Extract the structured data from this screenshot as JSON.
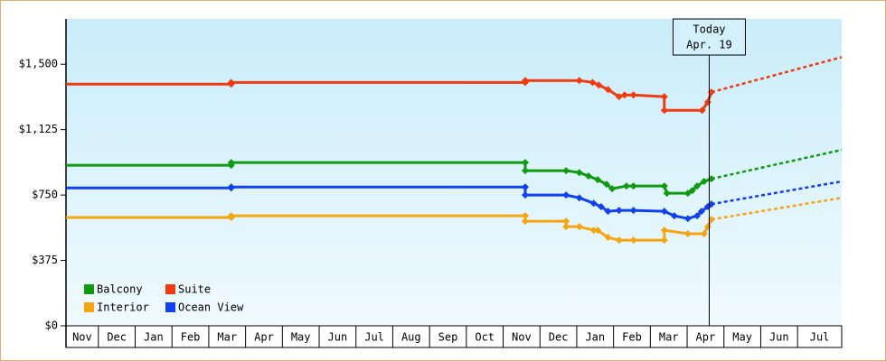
{
  "chart_data": {
    "type": "line",
    "xlim": [
      0.12,
      21.2
    ],
    "ylim": [
      0,
      1760
    ],
    "xticks": [
      {
        "value": 0,
        "label": "Nov"
      },
      {
        "value": 1,
        "label": "Dec"
      },
      {
        "value": 2,
        "label": "Jan"
      },
      {
        "value": 3,
        "label": "Feb"
      },
      {
        "value": 4,
        "label": "Mar"
      },
      {
        "value": 5,
        "label": "Apr"
      },
      {
        "value": 6,
        "label": "May"
      },
      {
        "value": 7,
        "label": "Jun"
      },
      {
        "value": 8,
        "label": "Jul"
      },
      {
        "value": 9,
        "label": "Aug"
      },
      {
        "value": 10,
        "label": "Sep"
      },
      {
        "value": 11,
        "label": "Oct"
      },
      {
        "value": 12,
        "label": "Nov"
      },
      {
        "value": 13,
        "label": "Dec"
      },
      {
        "value": 14,
        "label": "Jan"
      },
      {
        "value": 15,
        "label": "Feb"
      },
      {
        "value": 16,
        "label": "Mar"
      },
      {
        "value": 17,
        "label": "Apr"
      },
      {
        "value": 18,
        "label": "May"
      },
      {
        "value": 19,
        "label": "Jun"
      },
      {
        "value": 20,
        "label": "Jul"
      }
    ],
    "yticks": [
      {
        "value": 0,
        "label": "$0"
      },
      {
        "value": 375,
        "label": "$375"
      },
      {
        "value": 750,
        "label": "$750"
      },
      {
        "value": 1125,
        "label": "$1,125"
      },
      {
        "value": 1500,
        "label": "$1,500"
      }
    ],
    "legend": "lower left",
    "annotation": {
      "x": 17.6,
      "lines": [
        "Today",
        "Apr. 19"
      ]
    },
    "series": [
      {
        "name": "Balcony",
        "color": "#109a10",
        "x": [
          0.12,
          4.61,
          4.61,
          12.6,
          12.6,
          13.71,
          14.07,
          14.32,
          14.57,
          14.81,
          14.96,
          15.35,
          15.54,
          16.38,
          16.45,
          17.02,
          17.14,
          17.27,
          17.46,
          17.66
        ],
        "values": [
          921,
          921,
          936,
          936,
          890,
          890,
          879,
          859,
          838,
          812,
          786,
          802,
          802,
          802,
          760,
          760,
          776,
          802,
          828,
          843
        ],
        "forecast": {
          "x": [
            17.66,
            21.2
          ],
          "values": [
            843,
            1009
          ]
        }
      },
      {
        "name": "Suite",
        "color": "#f03a10",
        "x": [
          0.12,
          4.61,
          4.61,
          12.6,
          12.6,
          14.07,
          14.43,
          14.6,
          14.85,
          15.15,
          15.3,
          15.54,
          16.38,
          16.38,
          17.41,
          17.56,
          17.66
        ],
        "values": [
          1386,
          1386,
          1396,
          1396,
          1407,
          1407,
          1396,
          1381,
          1355,
          1314,
          1324,
          1324,
          1314,
          1236,
          1236,
          1283,
          1340
        ],
        "forecast": {
          "x": [
            17.66,
            21.2
          ],
          "values": [
            1340,
            1541
          ]
        }
      },
      {
        "name": "Interior",
        "color": "#f5a510",
        "x": [
          0.12,
          4.61,
          4.61,
          12.6,
          12.6,
          13.71,
          13.71,
          14.07,
          14.46,
          14.57,
          14.85,
          15.15,
          15.54,
          16.38,
          16.38,
          17.02,
          17.46,
          17.56,
          17.66
        ],
        "values": [
          621,
          621,
          631,
          631,
          600,
          600,
          569,
          569,
          548,
          548,
          507,
          491,
          491,
          491,
          548,
          528,
          528,
          569,
          610
        ],
        "forecast": {
          "x": [
            17.66,
            21.2
          ],
          "values": [
            610,
            734
          ]
        }
      },
      {
        "name": "Ocean View",
        "color": "#1040f0",
        "x": [
          0.12,
          4.61,
          4.61,
          12.6,
          12.6,
          13.71,
          14.07,
          14.46,
          14.66,
          14.85,
          15.15,
          15.54,
          16.38,
          16.65,
          17.02,
          17.27,
          17.39,
          17.56,
          17.66
        ],
        "values": [
          791,
          791,
          796,
          796,
          750,
          750,
          734,
          703,
          683,
          657,
          662,
          662,
          657,
          631,
          615,
          631,
          657,
          683,
          698
        ],
        "forecast": {
          "x": [
            17.66,
            21.2
          ],
          "values": [
            698,
            828
          ]
        }
      }
    ]
  }
}
